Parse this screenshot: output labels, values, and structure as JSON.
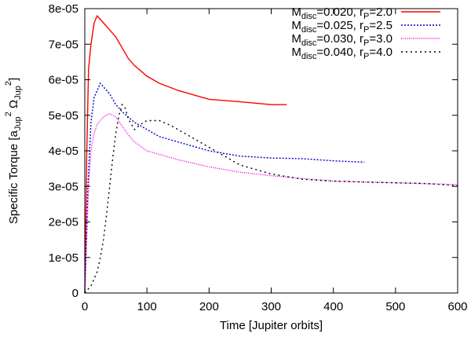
{
  "chart_data": {
    "type": "line",
    "title": "",
    "xlabel": "Time [Jupiter orbits]",
    "ylabel": {
      "prefix": "Specific Torque [a",
      "sub1": "Jup",
      "sup1": "2",
      "mid": " Ω",
      "sub2": "Jup",
      "sup2": "2",
      "suffix": "]"
    },
    "xlim": [
      0,
      600
    ],
    "ylim": [
      0,
      8e-05
    ],
    "xticks": [
      0,
      100,
      200,
      300,
      400,
      500,
      600
    ],
    "xtick_labels": [
      "0",
      "100",
      "200",
      "300",
      "400",
      "500",
      "600"
    ],
    "yticks": [
      0,
      1e-05,
      2e-05,
      3e-05,
      4e-05,
      5e-05,
      6e-05,
      7e-05,
      8e-05
    ],
    "ytick_labels": [
      "0",
      "1e-05",
      "2e-05",
      "3e-05",
      "4e-05",
      "5e-05",
      "6e-05",
      "7e-05",
      "8e-05"
    ],
    "grid": false,
    "legend_position": "top-right",
    "series": [
      {
        "name": "M_disc=0.020, r_P=2.0",
        "label": {
          "m": "M",
          "msub": "disc",
          "mval": "=0.020, r",
          "rsub": "P",
          "rval": "=2.0"
        },
        "color": "#ff0000",
        "dash": "none",
        "x": [
          0,
          3,
          6,
          10,
          15,
          20,
          30,
          40,
          50,
          60,
          70,
          80,
          100,
          120,
          150,
          180,
          200,
          250,
          300,
          325
        ],
        "y": [
          0,
          3.8e-05,
          6.3e-05,
          7e-05,
          7.6e-05,
          7.8e-05,
          7.6e-05,
          7.4e-05,
          7.2e-05,
          6.9e-05,
          6.6e-05,
          6.4e-05,
          6.1e-05,
          5.9e-05,
          5.7e-05,
          5.55e-05,
          5.45e-05,
          5.38e-05,
          5.3e-05,
          5.3e-05
        ]
      },
      {
        "name": "M_disc=0.025, r_P=2.5",
        "label": {
          "m": "M",
          "msub": "disc",
          "mval": "=0.025, r",
          "rsub": "P",
          "rval": "=2.5"
        },
        "color": "#0000cc",
        "dash": "2,2",
        "x": [
          0,
          5,
          10,
          15,
          20,
          25,
          30,
          40,
          50,
          60,
          70,
          80,
          90,
          100,
          120,
          150,
          200,
          250,
          300,
          350,
          400,
          450
        ],
        "y": [
          0,
          3e-05,
          4.8e-05,
          5.5e-05,
          5.7e-05,
          5.9e-05,
          5.8e-05,
          5.6e-05,
          5.3e-05,
          5.1e-05,
          4.95e-05,
          4.8e-05,
          4.7e-05,
          4.6e-05,
          4.4e-05,
          4.25e-05,
          4e-05,
          3.85e-05,
          3.8e-05,
          3.78e-05,
          3.72e-05,
          3.68e-05
        ]
      },
      {
        "name": "M_disc=0.030, r_P=3.0",
        "label": {
          "m": "M",
          "msub": "disc",
          "mval": "=0.030, r",
          "rsub": "P",
          "rval": "=3.0"
        },
        "color": "#e600e6",
        "dash": "1,1.5",
        "x": [
          0,
          3,
          6,
          10,
          15,
          20,
          30,
          40,
          50,
          60,
          70,
          80,
          100,
          150,
          200,
          250,
          300,
          350,
          400,
          500,
          600
        ],
        "y": [
          0,
          1.5e-05,
          3e-05,
          4e-05,
          4.5e-05,
          4.75e-05,
          4.95e-05,
          5.05e-05,
          4.95e-05,
          4.7e-05,
          4.45e-05,
          4.25e-05,
          4e-05,
          3.75e-05,
          3.55e-05,
          3.4e-05,
          3.3e-05,
          3.22e-05,
          3.15e-05,
          3.1e-05,
          3.05e-05
        ]
      },
      {
        "name": "M_disc=0.040, r_P=4.0",
        "label": {
          "m": "M",
          "msub": "disc",
          "mval": "=0.040, r",
          "rsub": "P",
          "rval": "=4.0"
        },
        "color": "#000000",
        "dash": "2,4",
        "x": [
          0,
          10,
          20,
          25,
          30,
          35,
          40,
          45,
          50,
          55,
          60,
          65,
          70,
          80,
          90,
          100,
          120,
          140,
          160,
          200,
          250,
          300,
          350,
          400,
          450,
          500,
          550,
          600
        ],
        "y": [
          0,
          2e-06,
          6e-06,
          1e-05,
          1.5e-05,
          2.2e-05,
          3e-05,
          3.8e-05,
          4.5e-05,
          5e-05,
          5.3e-05,
          5.2e-05,
          4.9e-05,
          4.6e-05,
          4.75e-05,
          4.85e-05,
          4.85e-05,
          4.7e-05,
          4.5e-05,
          4.1e-05,
          3.6e-05,
          3.35e-05,
          3.2e-05,
          3.15e-05,
          3.12e-05,
          3.1e-05,
          3.08e-05,
          3.02e-05
        ]
      }
    ]
  }
}
